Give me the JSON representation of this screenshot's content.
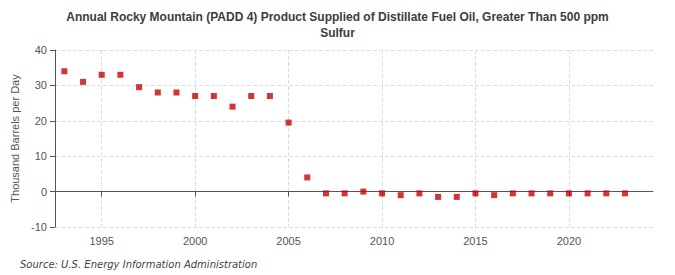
{
  "chart_data": {
    "type": "scatter",
    "title": "Annual Rocky Mountain (PADD 4) Product Supplied of Distillate Fuel Oil, Greater Than 500 ppm\nSulfur",
    "ylabel": "Thousand Barrels per Day",
    "source": "Source: U.S. Energy Information Administration",
    "x": [
      1993,
      1994,
      1995,
      1996,
      1997,
      1998,
      1999,
      2000,
      2001,
      2002,
      2003,
      2004,
      2005,
      2006,
      2007,
      2008,
      2009,
      2010,
      2011,
      2012,
      2013,
      2014,
      2015,
      2016,
      2017,
      2018,
      2019,
      2020,
      2021,
      2022,
      2023
    ],
    "values": [
      34.0,
      31.0,
      33.0,
      33.0,
      29.5,
      28.0,
      28.0,
      27.0,
      27.0,
      24.0,
      27.0,
      27.0,
      19.5,
      4.0,
      -0.5,
      -0.5,
      0.0,
      -0.5,
      -1.0,
      -0.5,
      -1.5,
      -1.5,
      -0.5,
      -1.0,
      -0.5,
      -0.5,
      -0.5,
      -0.5,
      -0.5,
      -0.5,
      -0.5
    ],
    "color": "#cc0000",
    "marker": "square",
    "xlim": [
      1992.5,
      2024.5
    ],
    "xticks": [
      1995,
      2000,
      2005,
      2010,
      2015,
      2020
    ],
    "ylim": [
      -10,
      40
    ],
    "yticks": [
      -10,
      0,
      10,
      20,
      30,
      40
    ],
    "grid": true
  }
}
